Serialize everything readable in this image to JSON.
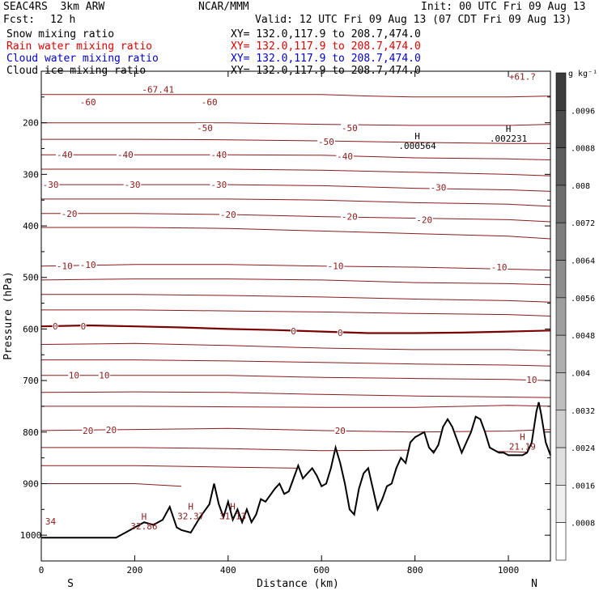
{
  "header": {
    "model": "SEAC4RS  3km ARW",
    "center": "NCAR/MMM",
    "init": "Init: 00 UTC Fri 09 Aug 13",
    "fcst_label": "Fcst:",
    "fcst_value": "12 h",
    "valid": "Valid: 12 UTC Fri 09 Aug 13 (07 CDT Fri 09 Aug 13)"
  },
  "fields": [
    {
      "name": "Snow mixing ratio",
      "xy": "XY= 132.0,117.9 to 208.7,474.0",
      "color": "#000000"
    },
    {
      "name": "Rain water mixing ratio",
      "xy": "XY= 132.0,117.9 to 208.7,474.0",
      "color": "#e00000"
    },
    {
      "name": "Cloud water mixing ratio",
      "xy": "XY= 132.0,117.9 to 208.7,474.0",
      "color": "#0000cc"
    },
    {
      "name": "Cloud ice mixing ratio",
      "xy": "XY= 132.0,117.9 to 208.7,474.0",
      "color": "#000000"
    }
  ],
  "colors": {
    "isotherm": "#8b1a1a",
    "zero_isotherm": "#7a0000",
    "terrain": "#000000",
    "frame": "#000000"
  },
  "chart_data": {
    "type": "line",
    "xlabel": "Distance (km)",
    "ylabel": "Pressure (hPa)",
    "xlim": [
      0,
      1090
    ],
    "ylim": [
      1050,
      100
    ],
    "x_ticks": [
      0,
      200,
      400,
      600,
      800,
      1000
    ],
    "y_ticks": [
      200,
      300,
      400,
      500,
      600,
      700,
      800,
      900,
      1000
    ],
    "x_end_labels": [
      "S",
      "N"
    ],
    "isotherm_labels": [
      "-67.41",
      "-60",
      "-60",
      "-50",
      "-50",
      "-50",
      "-40",
      "-40",
      "-40",
      "-40",
      "-30",
      "-30",
      "-30",
      "-30",
      "-20",
      "-20",
      "-20",
      "-20",
      "-10",
      "-10",
      "-10",
      "-10",
      "0",
      "0",
      "0",
      "0",
      "10",
      "10",
      "10",
      "20",
      "20",
      "20",
      "34",
      "+61.?"
    ],
    "extrema_labels": [
      {
        "mark": "H",
        "value": ".000564",
        "x": 805,
        "p": 232
      },
      {
        "mark": "H",
        "value": ".002231",
        "x": 1000,
        "p": 218
      },
      {
        "mark": "H",
        "value": "32.86",
        "x": 220,
        "p": 970
      },
      {
        "mark": "H",
        "value": "32.37",
        "x": 320,
        "p": 950
      },
      {
        "mark": "H",
        "value": "31.13",
        "x": 410,
        "p": 950
      },
      {
        "mark": "H",
        "value": "21.19",
        "x": 1030,
        "p": 815
      }
    ],
    "colorbar": {
      "unit": "g kg⁻¹",
      "ticks": [
        ".0096",
        ".0088",
        ".008",
        ".0072",
        ".0064",
        ".0056",
        ".0048",
        ".004",
        ".0032",
        ".0024",
        ".0016",
        ".0008"
      ]
    },
    "isotherms_degC": [
      {
        "t": -60,
        "points": [
          [
            0,
            145
          ],
          [
            200,
            145
          ],
          [
            400,
            145
          ],
          [
            600,
            145
          ],
          [
            700,
            148
          ],
          [
            800,
            150
          ],
          [
            900,
            150
          ],
          [
            1000,
            150
          ],
          [
            1090,
            148
          ]
        ]
      },
      {
        "t": -50,
        "points": [
          [
            0,
            200
          ],
          [
            200,
            200
          ],
          [
            400,
            200
          ],
          [
            600,
            203
          ],
          [
            800,
            205
          ],
          [
            1000,
            205
          ],
          [
            1090,
            203
          ]
        ]
      },
      {
        "t": -45,
        "points": [
          [
            0,
            232
          ],
          [
            200,
            232
          ],
          [
            400,
            233
          ],
          [
            600,
            235
          ],
          [
            800,
            238
          ],
          [
            1000,
            240
          ],
          [
            1090,
            240
          ]
        ]
      },
      {
        "t": -40,
        "points": [
          [
            0,
            262
          ],
          [
            200,
            262
          ],
          [
            400,
            262
          ],
          [
            600,
            263
          ],
          [
            800,
            268
          ],
          [
            1000,
            270
          ],
          [
            1090,
            272
          ]
        ]
      },
      {
        "t": -35,
        "points": [
          [
            0,
            290
          ],
          [
            200,
            290
          ],
          [
            400,
            290
          ],
          [
            600,
            292
          ],
          [
            800,
            296
          ],
          [
            1000,
            300
          ],
          [
            1090,
            303
          ]
        ]
      },
      {
        "t": -30,
        "points": [
          [
            0,
            320
          ],
          [
            200,
            320
          ],
          [
            400,
            320
          ],
          [
            600,
            322
          ],
          [
            800,
            327
          ],
          [
            1000,
            330
          ],
          [
            1090,
            333
          ]
        ]
      },
      {
        "t": -25,
        "points": [
          [
            0,
            348
          ],
          [
            200,
            348
          ],
          [
            400,
            348
          ],
          [
            600,
            350
          ],
          [
            800,
            355
          ],
          [
            1000,
            358
          ],
          [
            1090,
            362
          ]
        ]
      },
      {
        "t": -20,
        "points": [
          [
            0,
            376
          ],
          [
            200,
            376
          ],
          [
            400,
            378
          ],
          [
            600,
            382
          ],
          [
            800,
            385
          ],
          [
            1000,
            388
          ],
          [
            1090,
            392
          ]
        ]
      },
      {
        "t": -15,
        "points": [
          [
            0,
            403
          ],
          [
            200,
            403
          ],
          [
            400,
            405
          ],
          [
            600,
            410
          ],
          [
            800,
            415
          ],
          [
            1000,
            420
          ],
          [
            1090,
            425
          ]
        ]
      },
      {
        "t": -10,
        "points": [
          [
            0,
            478
          ],
          [
            200,
            475
          ],
          [
            400,
            475
          ],
          [
            600,
            478
          ],
          [
            800,
            480
          ],
          [
            1000,
            484
          ],
          [
            1090,
            486
          ]
        ]
      },
      {
        "t": -7,
        "points": [
          [
            0,
            505
          ],
          [
            200,
            503
          ],
          [
            400,
            503
          ],
          [
            600,
            505
          ],
          [
            800,
            510
          ],
          [
            1000,
            512
          ],
          [
            1090,
            514
          ]
        ]
      },
      {
        "t": -3,
        "points": [
          [
            0,
            533
          ],
          [
            200,
            533
          ],
          [
            400,
            535
          ],
          [
            600,
            538
          ],
          [
            800,
            542
          ],
          [
            1000,
            545
          ],
          [
            1090,
            548
          ]
        ]
      },
      {
        "t": -1,
        "points": [
          [
            0,
            563
          ],
          [
            200,
            563
          ],
          [
            400,
            565
          ],
          [
            600,
            567
          ],
          [
            800,
            570
          ],
          [
            1000,
            572
          ],
          [
            1090,
            575
          ]
        ]
      },
      {
        "t": 0,
        "points": [
          [
            0,
            595
          ],
          [
            100,
            593
          ],
          [
            200,
            595
          ],
          [
            300,
            597
          ],
          [
            400,
            600
          ],
          [
            500,
            602
          ],
          [
            600,
            605
          ],
          [
            700,
            608
          ],
          [
            800,
            608
          ],
          [
            900,
            607
          ],
          [
            1000,
            605
          ],
          [
            1090,
            603
          ]
        ]
      },
      {
        "t": 3,
        "points": [
          [
            0,
            630
          ],
          [
            200,
            628
          ],
          [
            400,
            632
          ],
          [
            600,
            637
          ],
          [
            800,
            640
          ],
          [
            1000,
            640
          ],
          [
            1090,
            642
          ]
        ]
      },
      {
        "t": 7,
        "points": [
          [
            0,
            660
          ],
          [
            200,
            660
          ],
          [
            400,
            662
          ],
          [
            600,
            665
          ],
          [
            800,
            668
          ],
          [
            1000,
            670
          ],
          [
            1090,
            672
          ]
        ]
      },
      {
        "t": 10,
        "points": [
          [
            0,
            690
          ],
          [
            200,
            690
          ],
          [
            400,
            690
          ],
          [
            600,
            694
          ],
          [
            800,
            696
          ],
          [
            1000,
            698
          ],
          [
            1090,
            700
          ]
        ]
      },
      {
        "t": 13,
        "points": [
          [
            0,
            723
          ],
          [
            200,
            722
          ],
          [
            400,
            723
          ],
          [
            600,
            727
          ],
          [
            800,
            730
          ],
          [
            1000,
            732
          ],
          [
            1090,
            733
          ]
        ]
      },
      {
        "t": 16,
        "points": [
          [
            0,
            750
          ],
          [
            200,
            750
          ],
          [
            400,
            751
          ],
          [
            600,
            752
          ],
          [
            800,
            752
          ],
          [
            1000,
            748
          ],
          [
            1090,
            750
          ]
        ]
      },
      {
        "t": 20,
        "points": [
          [
            0,
            797
          ],
          [
            200,
            795
          ],
          [
            400,
            793
          ],
          [
            600,
            797
          ],
          [
            800,
            800
          ],
          [
            1000,
            798
          ],
          [
            1090,
            795
          ]
        ]
      },
      {
        "t": 22,
        "points": [
          [
            0,
            830
          ],
          [
            200,
            830
          ],
          [
            400,
            832
          ],
          [
            600,
            836
          ],
          [
            800,
            835
          ],
          [
            1000,
            838
          ],
          [
            1090,
            840
          ]
        ]
      },
      {
        "t": 25,
        "points": [
          [
            0,
            865
          ],
          [
            200,
            865
          ],
          [
            400,
            868
          ],
          [
            550,
            870
          ]
        ]
      },
      {
        "t": 28,
        "points": [
          [
            0,
            900
          ],
          [
            200,
            900
          ],
          [
            300,
            905
          ]
        ]
      }
    ],
    "terrain_hpa": [
      [
        0,
        1005
      ],
      [
        160,
        1005
      ],
      [
        180,
        995
      ],
      [
        200,
        985
      ],
      [
        220,
        975
      ],
      [
        240,
        980
      ],
      [
        260,
        970
      ],
      [
        275,
        945
      ],
      [
        290,
        985
      ],
      [
        300,
        990
      ],
      [
        320,
        995
      ],
      [
        340,
        965
      ],
      [
        360,
        940
      ],
      [
        370,
        900
      ],
      [
        380,
        940
      ],
      [
        390,
        965
      ],
      [
        400,
        935
      ],
      [
        410,
        970
      ],
      [
        420,
        950
      ],
      [
        430,
        975
      ],
      [
        440,
        950
      ],
      [
        450,
        975
      ],
      [
        460,
        960
      ],
      [
        470,
        930
      ],
      [
        480,
        935
      ],
      [
        500,
        910
      ],
      [
        510,
        900
      ],
      [
        520,
        920
      ],
      [
        530,
        915
      ],
      [
        540,
        890
      ],
      [
        550,
        865
      ],
      [
        560,
        890
      ],
      [
        570,
        880
      ],
      [
        580,
        870
      ],
      [
        590,
        885
      ],
      [
        600,
        905
      ],
      [
        610,
        900
      ],
      [
        620,
        870
      ],
      [
        630,
        830
      ],
      [
        640,
        860
      ],
      [
        650,
        900
      ],
      [
        660,
        950
      ],
      [
        670,
        960
      ],
      [
        680,
        910
      ],
      [
        690,
        880
      ],
      [
        700,
        870
      ],
      [
        710,
        910
      ],
      [
        720,
        950
      ],
      [
        730,
        930
      ],
      [
        740,
        905
      ],
      [
        750,
        900
      ],
      [
        760,
        870
      ],
      [
        770,
        850
      ],
      [
        780,
        860
      ],
      [
        790,
        820
      ],
      [
        800,
        810
      ],
      [
        810,
        805
      ],
      [
        820,
        800
      ],
      [
        830,
        830
      ],
      [
        840,
        840
      ],
      [
        850,
        825
      ],
      [
        860,
        790
      ],
      [
        870,
        775
      ],
      [
        880,
        790
      ],
      [
        890,
        815
      ],
      [
        900,
        840
      ],
      [
        910,
        820
      ],
      [
        920,
        800
      ],
      [
        930,
        770
      ],
      [
        940,
        775
      ],
      [
        950,
        800
      ],
      [
        960,
        830
      ],
      [
        970,
        835
      ],
      [
        980,
        840
      ],
      [
        990,
        840
      ],
      [
        1000,
        845
      ],
      [
        1010,
        845
      ],
      [
        1030,
        845
      ],
      [
        1040,
        840
      ],
      [
        1050,
        820
      ],
      [
        1060,
        760
      ],
      [
        1065,
        742
      ],
      [
        1070,
        765
      ],
      [
        1080,
        820
      ],
      [
        1090,
        845
      ]
    ]
  }
}
